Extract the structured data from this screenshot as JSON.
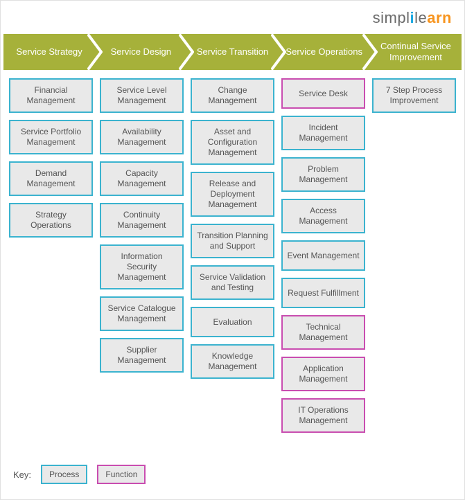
{
  "logo": {
    "p1": "simpl",
    "p2": "i",
    "p3": "le",
    "p4": "arn"
  },
  "colors": {
    "headerBg": "#a6b13a",
    "boxBg": "#e9e9e9",
    "processBorder": "#3bb3cf",
    "functionBorder": "#c94db0",
    "text": "#555555"
  },
  "header": [
    "Service Strategy",
    "Service Design",
    "Service Transition",
    "Service Operations",
    "Continual Service Improvement"
  ],
  "columns": [
    {
      "items": [
        {
          "label": "Financial Management",
          "type": "process"
        },
        {
          "label": "Service Portfolio Management",
          "type": "process"
        },
        {
          "label": "Demand Management",
          "type": "process"
        },
        {
          "label": "Strategy Operations",
          "type": "process"
        }
      ]
    },
    {
      "items": [
        {
          "label": "Service Level Management",
          "type": "process"
        },
        {
          "label": "Availability Management",
          "type": "process"
        },
        {
          "label": "Capacity Management",
          "type": "process"
        },
        {
          "label": "Continuity Management",
          "type": "process"
        },
        {
          "label": "Information Security Management",
          "type": "process"
        },
        {
          "label": "Service Catalogue Management",
          "type": "process"
        },
        {
          "label": "Supplier Management",
          "type": "process"
        }
      ]
    },
    {
      "items": [
        {
          "label": "Change Management",
          "type": "process"
        },
        {
          "label": "Asset and Configuration Management",
          "type": "process"
        },
        {
          "label": "Release and Deployment Management",
          "type": "process"
        },
        {
          "label": "Transition Planning and Support",
          "type": "process"
        },
        {
          "label": "Service Validation and Testing",
          "type": "process"
        },
        {
          "label": "Evaluation",
          "type": "process"
        },
        {
          "label": "Knowledge Management",
          "type": "process"
        }
      ]
    },
    {
      "items": [
        {
          "label": "Service Desk",
          "type": "function"
        },
        {
          "label": "Incident Management",
          "type": "process"
        },
        {
          "label": "Problem Management",
          "type": "process"
        },
        {
          "label": "Access Management",
          "type": "process"
        },
        {
          "label": "Event Management",
          "type": "process"
        },
        {
          "label": "Request Fulfillment",
          "type": "process"
        },
        {
          "label": "Technical Management",
          "type": "function"
        },
        {
          "label": "Application Management",
          "type": "function"
        },
        {
          "label": "IT Operations Management",
          "type": "function"
        }
      ]
    },
    {
      "items": [
        {
          "label": "7 Step Process Improvement",
          "type": "process"
        }
      ]
    }
  ],
  "key": {
    "label": "Key:",
    "process": "Process",
    "function": "Function"
  }
}
